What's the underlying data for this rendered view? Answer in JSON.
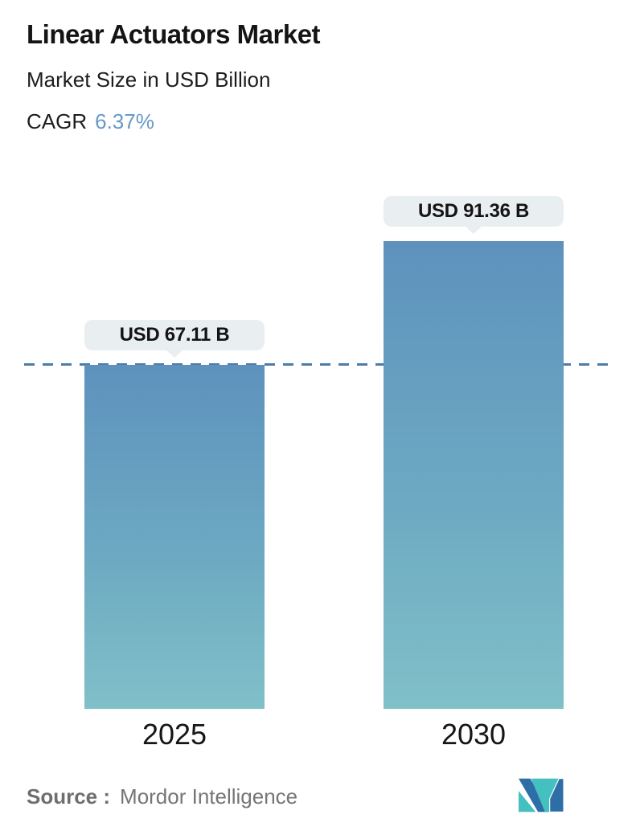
{
  "header": {
    "title": "Linear Actuators Market",
    "subtitle": "Market Size in USD Billion",
    "cagr_label": "CAGR",
    "cagr_value": "6.37%"
  },
  "chart_data": {
    "type": "bar",
    "title": "Linear Actuators Market",
    "subtitle": "Market Size in USD Billion",
    "cagr_percent": 6.37,
    "categories": [
      "2025",
      "2030"
    ],
    "values": [
      67.11,
      91.36
    ],
    "value_labels": [
      "USD 67.11 B",
      "USD 91.36 B"
    ],
    "unit": "USD Billion",
    "ylim": [
      0,
      91.36
    ],
    "reference_dashed_line_value": 67.11,
    "legend": "none",
    "grid": "off"
  },
  "footer": {
    "source_label": "Source :",
    "source_value": "Mordor Intelligence",
    "logo_icon": "mordor-intelligence-logo"
  },
  "colors": {
    "accent_cagr": "#6699c8",
    "bar_gradient_top": "#5e92bd",
    "bar_gradient_bottom": "#80c0c8",
    "dashed_line": "#4a7da8",
    "badge_background": "#e9eef0",
    "badge_text": "#141414",
    "source_text": "#757575",
    "logo_blue": "#2e6ea6",
    "logo_teal": "#45c0c1"
  }
}
